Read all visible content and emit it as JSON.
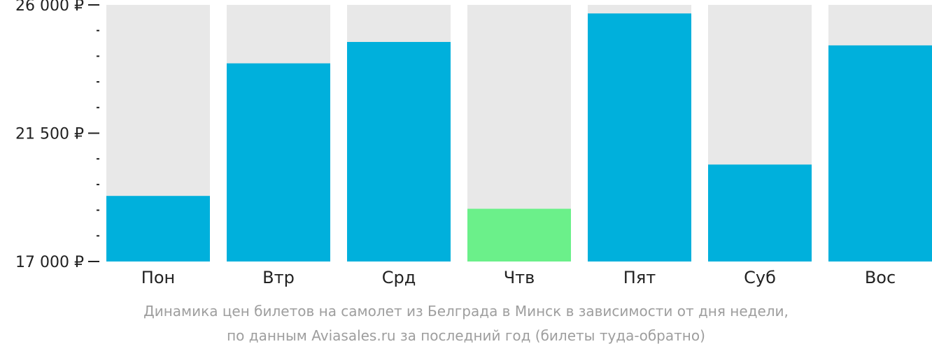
{
  "chart_data": {
    "type": "bar",
    "categories": [
      "Пон",
      "Втр",
      "Срд",
      "Чтв",
      "Пят",
      "Суб",
      "Вос"
    ],
    "values": [
      19300,
      23950,
      24700,
      18850,
      25700,
      20400,
      24580
    ],
    "highlight_index": 3,
    "ylim": [
      17000,
      26000
    ],
    "yticks": [
      {
        "value": 26000,
        "label": "26 000 ₽"
      },
      {
        "value": 21500,
        "label": "21 500 ₽"
      },
      {
        "value": 17000,
        "label": "17 000 ₽"
      }
    ],
    "minor_tick_step": 900,
    "colors": {
      "bar": "#00B0DC",
      "highlight": "#6BF08A",
      "background_bar": "#E8E8E8",
      "axis": "#222222"
    },
    "caption_lines": [
      "Динамика цен билетов на самолет из Белграда в Минск в зависимости от дня недели,",
      "по данным Aviasales.ru за последний год (билеты туда-обратно)"
    ]
  }
}
